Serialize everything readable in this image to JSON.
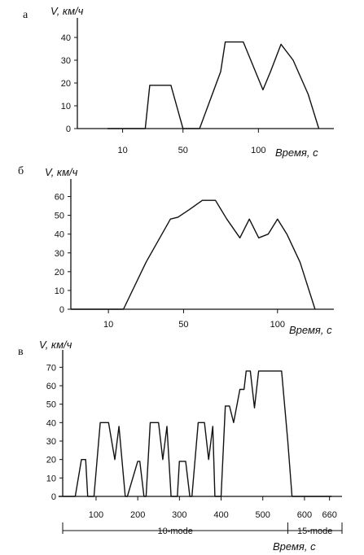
{
  "chart_data": [
    {
      "type": "line",
      "panel_label": "а",
      "ylabel": "V, км/ч",
      "xlabel": "Время, с",
      "ylim": [
        0,
        45
      ],
      "y_ticks": [
        0,
        10,
        20,
        30,
        40
      ],
      "x_tick_labels": [
        "10",
        "50",
        "100"
      ],
      "x_ticks": [
        10,
        50,
        100
      ],
      "series": [
        {
          "x": [
            0,
            15,
            25,
            28,
            42,
            50,
            61,
            75,
            78,
            90,
            103,
            108,
            115,
            123,
            133,
            140
          ],
          "values": [
            0,
            0,
            0,
            19,
            19,
            0,
            0,
            25,
            38,
            38,
            17,
            25,
            37,
            30,
            15,
            0
          ]
        }
      ]
    },
    {
      "type": "line",
      "panel_label": "б",
      "ylabel": "V, км/ч",
      "xlabel": "Время, с",
      "ylim": [
        0,
        65
      ],
      "y_ticks": [
        0,
        10,
        20,
        30,
        40,
        50,
        60
      ],
      "x_tick_labels": [
        "10",
        "50",
        "100"
      ],
      "x_ticks": [
        10,
        50,
        100
      ],
      "series": [
        {
          "x": [
            -10,
            18,
            30,
            43,
            47,
            53,
            60,
            67,
            73,
            80,
            85,
            90,
            95,
            100,
            105,
            112,
            120
          ],
          "values": [
            0,
            0,
            25,
            48,
            49,
            53,
            58,
            58,
            48,
            38,
            48,
            38,
            40,
            48,
            40,
            25,
            0
          ]
        }
      ]
    },
    {
      "type": "line",
      "panel_label": "в",
      "ylabel": "V, км/ч",
      "xlabel": "Время, с",
      "ylim": [
        0,
        75
      ],
      "y_ticks": [
        0,
        10,
        20,
        30,
        40,
        50,
        60,
        70
      ],
      "x_tick_labels": [
        "100",
        "200",
        "300",
        "400",
        "500",
        "600",
        "660"
      ],
      "x_ticks": [
        100,
        200,
        300,
        400,
        500,
        600,
        660
      ],
      "segment_labels": [
        "10-mode",
        "15-mode"
      ],
      "series": [
        {
          "x": [
            10,
            50,
            65,
            75,
            80,
            95,
            110,
            130,
            145,
            155,
            170,
            175,
            200,
            205,
            215,
            220,
            230,
            250,
            260,
            270,
            280,
            295,
            300,
            315,
            325,
            330,
            345,
            360,
            370,
            380,
            385,
            400,
            410,
            420,
            430,
            445,
            455,
            460,
            470,
            480,
            490,
            545,
            560,
            570,
            575,
            585,
            595,
            605,
            615,
            630,
            645,
            660,
            665
          ],
          "values": [
            0,
            0,
            20,
            20,
            0,
            0,
            40,
            40,
            20,
            38,
            0,
            0,
            19,
            19,
            0,
            0,
            40,
            40,
            20,
            38,
            0,
            0,
            19,
            19,
            0,
            0,
            40,
            40,
            20,
            38,
            0,
            0,
            49,
            49,
            40,
            58,
            58,
            68,
            68,
            48,
            68,
            68,
            30,
            0,
            0,
            0,
            0,
            0,
            0,
            0,
            0,
            0,
            0
          ]
        }
      ]
    }
  ]
}
